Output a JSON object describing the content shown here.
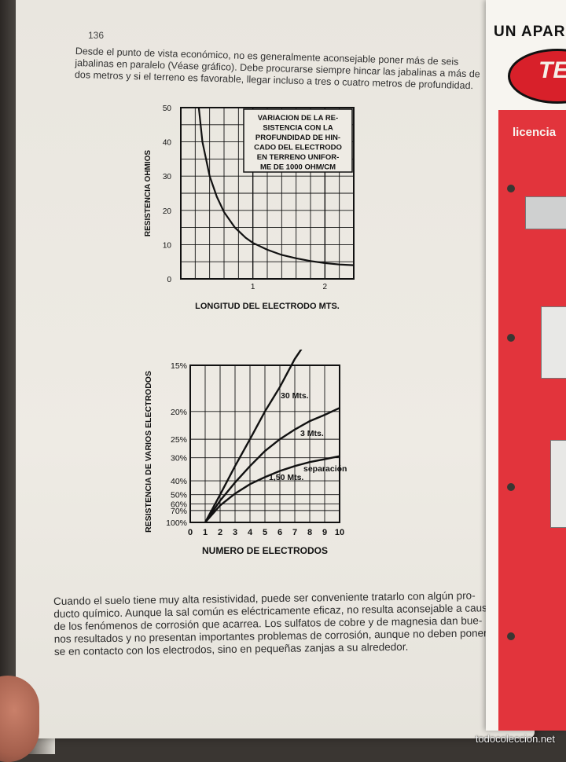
{
  "page": {
    "number": "136",
    "top_lines": [
      "Desde el punto de vista económico, no es generalmente aconsejable poner más de seis",
      "jabalinas en paralelo (Véase gráfico). Debe procurarse siempre hincar las jabalinas a más de",
      "dos metros y si el terreno es favorable, llegar incluso a tres o cuatro metros de profundidad."
    ],
    "bottom_lines": [
      "Cuando el suelo tiene muy alta resistividad, puede ser conveniente tratarlo con algún pro-",
      "ducto químico. Aunque la sal común es eléctricamente eficaz, no resulta aconsejable a causa",
      "de los fenómenos de corrosión que acarrea. Los sulfatos de cobre y de magnesia dan bue-",
      "nos resultados y no presentan importantes problemas de corrosión, aunque no deben poner-",
      "se en contacto con los electrodos, sino en pequeñas zanjas a su alrededor."
    ]
  },
  "chart_data": [
    {
      "type": "line",
      "title_lines": [
        "VARIACION DE LA RE-",
        "SISTENCIA CON LA",
        "PROFUNDIDAD DE HIN-",
        "CADO DEL ELECTRODO",
        "EN TERRENO UNIFOR-",
        "ME DE 1000 OHM/CM"
      ],
      "xlabel": "LONGITUD DEL ELECTRODO MTS.",
      "ylabel": "RESISTENCIA OHMIOS",
      "xlim": [
        0,
        2.4
      ],
      "ylim": [
        0,
        50
      ],
      "x_ticks": [
        "1",
        "2"
      ],
      "y_ticks": [
        "0",
        "10",
        "20",
        "30",
        "40",
        "50"
      ],
      "grid": true,
      "series": [
        {
          "x": [
            0.25,
            0.3,
            0.4,
            0.5,
            0.6,
            0.75,
            0.9,
            1.0,
            1.2,
            1.4,
            1.6,
            1.8,
            2.0,
            2.2,
            2.4
          ],
          "y": [
            50,
            40,
            30,
            24,
            19.5,
            15,
            12,
            10.5,
            8.5,
            7,
            6,
            5.2,
            4.6,
            4.2,
            4
          ]
        }
      ]
    },
    {
      "type": "line",
      "xlabel": "NUMERO DE ELECTRODOS",
      "ylabel": "RESISTENCIA DE VARIOS ELECTRODOS",
      "x_ticks": [
        "0",
        "1",
        "2",
        "3",
        "4",
        "5",
        "6",
        "7",
        "8",
        "9",
        "10"
      ],
      "y_ticks": [
        "100%",
        "70%",
        "60%",
        "50%",
        "40%",
        "30%",
        "25%",
        "20%",
        "15%"
      ],
      "xlim": [
        0,
        10
      ],
      "grid": true,
      "annotations": [
        "30 Mts.",
        "3 Mts.",
        "separación",
        "1,50 Mts."
      ],
      "series": [
        {
          "name": "30 Mts.",
          "x": [
            1,
            2,
            3,
            4,
            5,
            6,
            7,
            8,
            9,
            10
          ],
          "y": [
            100,
            50,
            33,
            25,
            20,
            17,
            14.5,
            13,
            11.5,
            10
          ]
        },
        {
          "name": "3 Mts.",
          "x": [
            1,
            2,
            3,
            4,
            5,
            6,
            7,
            8,
            9,
            10
          ],
          "y": [
            100,
            56,
            41,
            33,
            28,
            25,
            23,
            21.5,
            20.5,
            19.5
          ]
        },
        {
          "name": "1,50 Mts.",
          "x": [
            1,
            2,
            3,
            4,
            5,
            6,
            7,
            8,
            9,
            10
          ],
          "y": [
            100,
            62,
            49,
            42,
            38,
            35,
            33,
            31.5,
            30.5,
            29.5
          ]
        }
      ]
    }
  ],
  "advert": {
    "title": "UN APAR",
    "logo": "TEM",
    "band_text": "licencia",
    "colors": {
      "red": "#e2343c",
      "dark": "#111111"
    }
  },
  "watermark": "todocoleccion.net"
}
